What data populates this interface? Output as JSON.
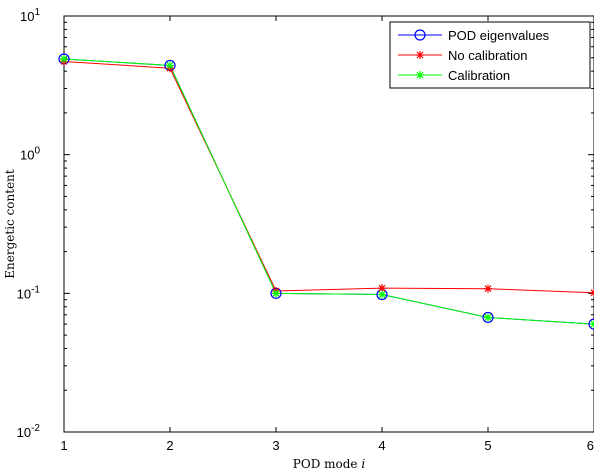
{
  "chart_data": {
    "type": "line",
    "title": "",
    "xlabel": "POD mode i",
    "ylabel": "Energetic content",
    "x": [
      1,
      2,
      3,
      4,
      5,
      6
    ],
    "xlim": [
      1,
      6
    ],
    "ylim": [
      0.01,
      10
    ],
    "yscale": "log",
    "grid": false,
    "legend_position": "top-right",
    "xticks": [
      "1",
      "2",
      "3",
      "4",
      "5",
      "6"
    ],
    "yticks": [
      {
        "base": "10",
        "exp": "-2",
        "value": 0.01
      },
      {
        "base": "10",
        "exp": "-1",
        "value": 0.1
      },
      {
        "base": "10",
        "exp": "0",
        "value": 1
      },
      {
        "base": "10",
        "exp": "1",
        "value": 10
      }
    ],
    "series": [
      {
        "name": "POD eigenvalues",
        "color": "#0000ff",
        "marker": "circle",
        "values": [
          4.9,
          4.4,
          0.1,
          0.098,
          0.067,
          0.06
        ]
      },
      {
        "name": "No calibration",
        "color": "#ff0000",
        "marker": "asterisk",
        "values": [
          4.7,
          4.2,
          0.104,
          0.109,
          0.108,
          0.101
        ]
      },
      {
        "name": "Calibration",
        "color": "#00ff00",
        "marker": "asterisk",
        "values": [
          4.9,
          4.4,
          0.1,
          0.098,
          0.067,
          0.06
        ]
      }
    ]
  }
}
